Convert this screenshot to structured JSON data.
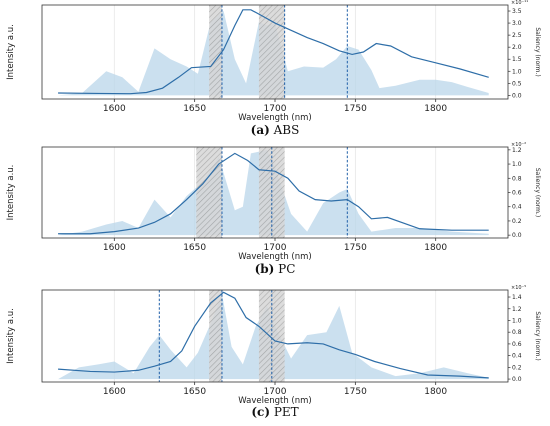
{
  "chart_data": [
    {
      "type": "line",
      "caption_letter": "(a)",
      "caption_text": "ABS",
      "xlabel": "Wavelength (nm)",
      "ylabel": "Intensity a.u.",
      "ylabel_right": "Saliency (norm.)",
      "right_exponent": "×10⁻¹¹",
      "xlim": [
        1555,
        1845
      ],
      "xticks": [
        "1600",
        "1650",
        "1700",
        "1750",
        "1800"
      ],
      "xtick_values": [
        1600,
        1650,
        1700,
        1750,
        1800
      ],
      "ylim_right": [
        -0.15,
        3.75
      ],
      "yticks_right": [
        "0.0",
        "0.5",
        "1.0",
        "1.5",
        "2.0",
        "2.5",
        "3.0",
        "3.5"
      ],
      "ytick_values_right": [
        0,
        0.5,
        1,
        1.5,
        2,
        2.5,
        3,
        3.5
      ],
      "line_x": [
        1565,
        1590,
        1610,
        1620,
        1630,
        1640,
        1648,
        1660,
        1668,
        1675,
        1680,
        1685,
        1692,
        1700,
        1710,
        1720,
        1730,
        1740,
        1748,
        1755,
        1763,
        1772,
        1785,
        1800,
        1815,
        1833
      ],
      "line_y": [
        0.1,
        0.08,
        0.07,
        0.12,
        0.3,
        0.75,
        1.15,
        1.2,
        1.9,
        2.9,
        3.55,
        3.55,
        3.3,
        3.0,
        2.7,
        2.4,
        2.15,
        1.85,
        1.7,
        1.8,
        2.15,
        2.05,
        1.6,
        1.35,
        1.1,
        0.75
      ],
      "area_x": [
        1565,
        1580,
        1595,
        1605,
        1615,
        1625,
        1635,
        1645,
        1652,
        1660,
        1668,
        1675,
        1682,
        1690,
        1695,
        1700,
        1708,
        1718,
        1730,
        1738,
        1745,
        1752,
        1760,
        1765,
        1775,
        1790,
        1800,
        1810,
        1820,
        1833
      ],
      "area_y": [
        0,
        0.1,
        1.0,
        0.75,
        0.15,
        1.95,
        1.5,
        1.2,
        0.9,
        3.05,
        3.5,
        1.5,
        0.5,
        3.05,
        2.9,
        3.0,
        1.0,
        1.2,
        1.15,
        1.5,
        2.05,
        1.9,
        1.05,
        0.3,
        0.4,
        0.65,
        0.65,
        0.55,
        0.35,
        0.1
      ],
      "vlines": [
        1667,
        1706,
        1745
      ],
      "bands": [
        [
          1659,
          1667
        ],
        [
          1690,
          1706
        ]
      ]
    },
    {
      "type": "line",
      "caption_letter": "(b)",
      "caption_text": "PC",
      "xlabel": "Wavelength (nm)",
      "ylabel": "Intensity a.u.",
      "ylabel_right": "Saliency (norm.)",
      "right_exponent": "×10⁻²",
      "xlim": [
        1555,
        1845
      ],
      "xticks": [
        "1600",
        "1650",
        "1700",
        "1750",
        "1800"
      ],
      "xtick_values": [
        1600,
        1650,
        1700,
        1750,
        1800
      ],
      "ylim_right": [
        -0.04,
        1.24
      ],
      "yticks_right": [
        "0.0",
        "0.2",
        "0.4",
        "0.6",
        "0.8",
        "1.0",
        "1.2"
      ],
      "ytick_values_right": [
        0,
        0.2,
        0.4,
        0.6,
        0.8,
        1.0,
        1.2
      ],
      "line_x": [
        1565,
        1585,
        1600,
        1615,
        1625,
        1635,
        1645,
        1655,
        1665,
        1675,
        1683,
        1690,
        1700,
        1708,
        1715,
        1725,
        1735,
        1745,
        1752,
        1760,
        1770,
        1790,
        1810,
        1833
      ],
      "line_y": [
        0.02,
        0.02,
        0.05,
        0.1,
        0.18,
        0.3,
        0.5,
        0.72,
        1.0,
        1.15,
        1.05,
        0.92,
        0.9,
        0.8,
        0.62,
        0.5,
        0.48,
        0.5,
        0.4,
        0.23,
        0.25,
        0.09,
        0.07,
        0.07
      ],
      "area_x": [
        1565,
        1580,
        1595,
        1605,
        1615,
        1625,
        1635,
        1645,
        1655,
        1665,
        1675,
        1680,
        1685,
        1695,
        1700,
        1710,
        1720,
        1730,
        1740,
        1745,
        1752,
        1760,
        1775,
        1790,
        1810,
        1833
      ],
      "area_y": [
        0,
        0.05,
        0.15,
        0.2,
        0.1,
        0.5,
        0.25,
        0.55,
        0.75,
        1.1,
        0.35,
        0.4,
        1.15,
        1.2,
        0.95,
        0.3,
        0.05,
        0.45,
        0.6,
        0.65,
        0.3,
        0.05,
        0.1,
        0.1,
        0.05,
        0.02
      ],
      "vlines": [
        1667,
        1698,
        1745
      ],
      "bands": [
        [
          1651,
          1667
        ],
        [
          1690,
          1706
        ]
      ]
    },
    {
      "type": "line",
      "caption_letter": "(c)",
      "caption_text": "PET",
      "xlabel": "Wavelength (nm)",
      "ylabel": "Intensity a.u.",
      "ylabel_right": "Saliency (norm.)",
      "right_exponent": "×10⁻⁵",
      "xlim": [
        1555,
        1845
      ],
      "xticks": [
        "1600",
        "1650",
        "1700",
        "1750",
        "1800"
      ],
      "xtick_values": [
        1600,
        1650,
        1700,
        1750,
        1800
      ],
      "ylim_right": [
        -0.05,
        1.52
      ],
      "yticks_right": [
        "0.0",
        "0.2",
        "0.4",
        "0.6",
        "0.8",
        "1.0",
        "1.2",
        "1.4"
      ],
      "ytick_values_right": [
        0,
        0.2,
        0.4,
        0.6,
        0.8,
        1.0,
        1.2,
        1.4
      ],
      "line_x": [
        1565,
        1585,
        1600,
        1615,
        1625,
        1635,
        1642,
        1650,
        1660,
        1668,
        1675,
        1682,
        1690,
        1700,
        1708,
        1720,
        1730,
        1740,
        1750,
        1762,
        1778,
        1795,
        1815,
        1833
      ],
      "line_y": [
        0.17,
        0.13,
        0.12,
        0.15,
        0.22,
        0.3,
        0.48,
        0.9,
        1.3,
        1.48,
        1.38,
        1.05,
        0.9,
        0.65,
        0.6,
        0.62,
        0.6,
        0.5,
        0.42,
        0.3,
        0.18,
        0.07,
        0.05,
        0.02
      ],
      "area_x": [
        1565,
        1578,
        1590,
        1600,
        1612,
        1622,
        1628,
        1635,
        1645,
        1652,
        1660,
        1667,
        1673,
        1680,
        1688,
        1695,
        1700,
        1710,
        1720,
        1732,
        1740,
        1748,
        1760,
        1775,
        1790,
        1805,
        1820,
        1833
      ],
      "area_y": [
        0,
        0.2,
        0.25,
        0.3,
        0.1,
        0.55,
        0.75,
        0.5,
        0.2,
        0.45,
        0.95,
        1.45,
        0.55,
        0.25,
        0.9,
        1.25,
        0.9,
        0.35,
        0.75,
        0.8,
        1.25,
        0.45,
        0.2,
        0.05,
        0.1,
        0.2,
        0.1,
        0.02
      ],
      "vlines": [
        1628,
        1667,
        1698
      ],
      "bands": [
        [
          1659,
          1667
        ],
        [
          1690,
          1706
        ]
      ]
    }
  ]
}
